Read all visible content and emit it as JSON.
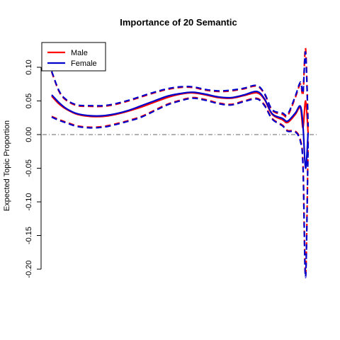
{
  "chart_data": {
    "type": "line",
    "title": "Importance of 20 Semantic",
    "xlabel": "",
    "ylabel": "Expected Topic Proportion",
    "ylim": [
      -0.2,
      0.13
    ],
    "xlim": [
      0,
      1
    ],
    "yticks": [
      0.1,
      0.05,
      0.0,
      -0.05,
      -0.1,
      -0.15,
      -0.2
    ],
    "ytick_labels": [
      "0.10",
      "0.05",
      "0.00",
      "-0.05",
      "-0.10",
      "-0.15",
      "-0.20"
    ],
    "grid": false,
    "reference_line": 0.0,
    "legend": {
      "position": "top-left",
      "entries": [
        "Male",
        "Female"
      ]
    },
    "colors": {
      "Male": "#ff0000",
      "Female": "#0000cc",
      "reference": "#666666"
    },
    "x": [
      0.0,
      0.03,
      0.06,
      0.1,
      0.15,
      0.2,
      0.25,
      0.3,
      0.35,
      0.4,
      0.45,
      0.5,
      0.55,
      0.6,
      0.65,
      0.7,
      0.75,
      0.8,
      0.83,
      0.86,
      0.9,
      0.92,
      0.95,
      0.97,
      0.98,
      0.99,
      1.0
    ],
    "series": [
      {
        "name": "Male",
        "estimate": [
          0.057,
          0.045,
          0.037,
          0.03,
          0.027,
          0.027,
          0.03,
          0.035,
          0.041,
          0.048,
          0.055,
          0.06,
          0.062,
          0.059,
          0.055,
          0.054,
          0.058,
          0.062,
          0.052,
          0.03,
          0.022,
          0.018,
          0.03,
          0.04,
          0.01,
          0.05,
          0.002
        ],
        "upper": [
          0.093,
          0.063,
          0.05,
          0.043,
          0.042,
          0.042,
          0.045,
          0.05,
          0.056,
          0.062,
          0.067,
          0.07,
          0.07,
          0.066,
          0.064,
          0.065,
          0.068,
          0.072,
          0.06,
          0.036,
          0.03,
          0.028,
          0.055,
          0.075,
          0.06,
          0.128,
          0.01
        ],
        "lower": [
          0.027,
          0.022,
          0.018,
          0.013,
          0.011,
          0.012,
          0.016,
          0.021,
          0.027,
          0.036,
          0.045,
          0.051,
          0.055,
          0.052,
          0.047,
          0.045,
          0.05,
          0.054,
          0.044,
          0.024,
          0.014,
          0.006,
          0.005,
          -0.008,
          -0.045,
          -0.21,
          -0.01
        ]
      },
      {
        "name": "Female",
        "estimate": [
          0.059,
          0.047,
          0.038,
          0.031,
          0.028,
          0.028,
          0.031,
          0.036,
          0.043,
          0.05,
          0.057,
          0.061,
          0.063,
          0.06,
          0.056,
          0.055,
          0.059,
          0.064,
          0.053,
          0.031,
          0.024,
          0.02,
          0.032,
          0.042,
          0.012,
          -0.05,
          0.003
        ],
        "upper": [
          0.094,
          0.064,
          0.051,
          0.044,
          0.043,
          0.043,
          0.046,
          0.051,
          0.057,
          0.063,
          0.068,
          0.071,
          0.071,
          0.067,
          0.065,
          0.066,
          0.069,
          0.073,
          0.061,
          0.037,
          0.032,
          0.03,
          0.057,
          0.078,
          0.063,
          0.122,
          0.012
        ],
        "lower": [
          0.026,
          0.021,
          0.017,
          0.012,
          0.01,
          0.011,
          0.015,
          0.02,
          0.026,
          0.035,
          0.044,
          0.05,
          0.054,
          0.051,
          0.046,
          0.044,
          0.049,
          0.053,
          0.043,
          0.023,
          0.013,
          0.005,
          0.004,
          -0.01,
          -0.048,
          -0.212,
          -0.012
        ]
      }
    ]
  }
}
